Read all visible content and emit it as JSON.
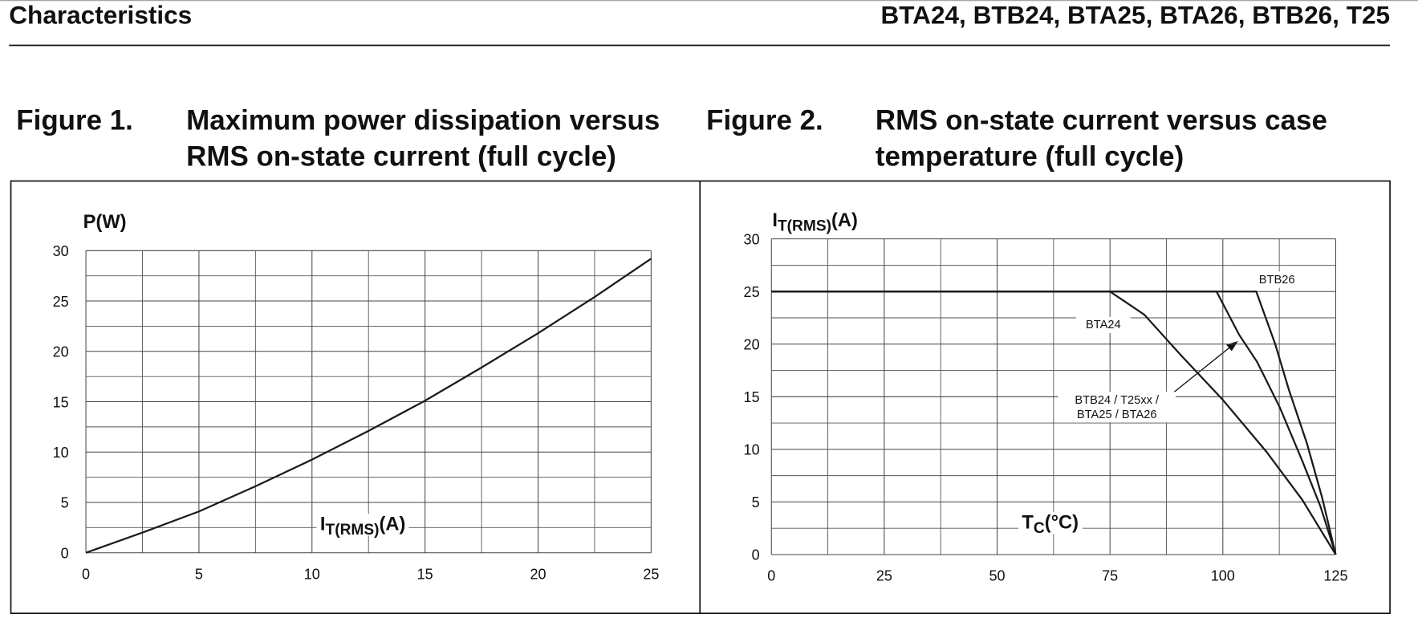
{
  "header": {
    "section": "Characteristics",
    "parts": "BTA24, BTB24, BTA25, BTA26, BTB26, T25"
  },
  "chart_data": [
    {
      "type": "line",
      "figure_label": "Figure 1.",
      "title": "Maximum power dissipation versus RMS on-state current (full cycle)",
      "y_label": "P(W)",
      "x_label": {
        "main": "I",
        "sub": "T(RMS)",
        "unit": "(A)"
      },
      "x": [
        0,
        2.5,
        5,
        7.5,
        10,
        12.5,
        15,
        17.5,
        20,
        22.5,
        25
      ],
      "series": [
        {
          "color": "#1a1a1a",
          "values": [
            0,
            2.0,
            4.1,
            6.6,
            9.25,
            12.1,
            15.1,
            18.4,
            21.8,
            25.4,
            29.2
          ]
        }
      ],
      "xlim": [
        0,
        25
      ],
      "ylim": [
        0,
        30
      ],
      "xticks": [
        0,
        5,
        10,
        15,
        20,
        25
      ],
      "yticks": [
        0,
        5,
        10,
        15,
        20,
        25,
        30
      ],
      "xminorticks": [
        2.5,
        7.5,
        12.5,
        17.5,
        22.5
      ],
      "yminorticks": [
        2.5,
        7.5,
        12.5,
        17.5,
        22.5,
        27.5
      ],
      "grid": true
    },
    {
      "type": "line",
      "figure_label": "Figure 2.",
      "title": "RMS on-state current versus case temperature (full cycle)",
      "y_label": {
        "main": "I",
        "sub": "T(RMS)",
        "unit": "(A)"
      },
      "x_label": {
        "main": "T",
        "sub": "C",
        "unit": "(°C)"
      },
      "series": [
        {
          "name": "BTA24",
          "color": "#1a1a1a",
          "x": [
            0,
            75,
            82.6,
            90.6,
            100,
            109.6,
            117.6,
            125
          ],
          "values": [
            25,
            25,
            22.8,
            19.0,
            14.7,
            9.8,
            5.2,
            0
          ]
        },
        {
          "name": "BTB24 / T25xx / BTA25 / BTA26",
          "color": "#1a1a1a",
          "x": [
            0,
            98.6,
            103.6,
            107.6,
            112.6,
            117.6,
            121.6,
            125
          ],
          "values": [
            25,
            25,
            20.9,
            18.3,
            14,
            8.9,
            4.6,
            0
          ]
        },
        {
          "name": "BTB26",
          "color": "#1a1a1a",
          "x": [
            0,
            107.4,
            111.6,
            114.6,
            118.6,
            122,
            125
          ],
          "values": [
            25,
            25,
            20,
            15.7,
            10.6,
            5.4,
            0
          ]
        }
      ],
      "xlim": [
        0,
        125
      ],
      "ylim": [
        0,
        30
      ],
      "xticks": [
        0,
        25,
        50,
        75,
        100,
        125
      ],
      "yticks": [
        0,
        5,
        10,
        15,
        20,
        25,
        30
      ],
      "xminorticks": [
        12.5,
        37.5,
        62.5,
        87.5,
        112.5
      ],
      "yminorticks": [
        2.5,
        7.5,
        12.5,
        17.5,
        22.5,
        27.5
      ],
      "grid": true
    }
  ]
}
